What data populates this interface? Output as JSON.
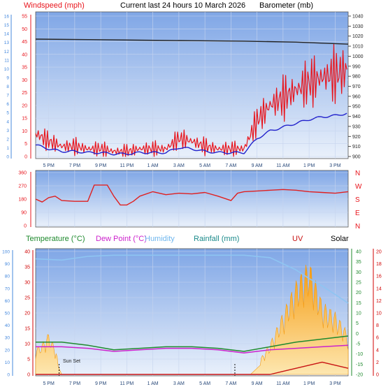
{
  "header": {
    "windspeed_label": "Windspeed (mph)",
    "title": "Current last 24 hours 10 March 2026",
    "barometer_label": "Barometer (mb)"
  },
  "legend": {
    "temperature": "Temperature (°C)",
    "dew_point": "Dew Point (°C)",
    "humidity": "Humidity",
    "rainfall": "Rainfall (mm)",
    "uv": "UV",
    "solar": "Solar"
  },
  "annotations": {
    "sun_set": "Sun Set"
  },
  "colors": {
    "panel_top": "#7fa6e6",
    "panel_bottom": "#eaf1fb",
    "windspeed": "#e8141c",
    "wind_avg": "#2222cc",
    "barometer": "#222222",
    "direction": "#e02020",
    "temperature": "#1f8a2e",
    "dew_point": "#cc22cc",
    "humidity": "#8ec5f2",
    "solar": "#f59b10",
    "uv": "#c81414",
    "left_axis_blue": "#4488dd",
    "right_axis_green": "#1f8a2e",
    "right_axis_red": "#d00000"
  },
  "chart_data": [
    {
      "type": "line",
      "name": "wind-barometer",
      "x_ticks": [
        "5 PM",
        "7 PM",
        "9 PM",
        "11 PM",
        "1 AM",
        "3 AM",
        "5 AM",
        "7 AM",
        "9 AM",
        "11 AM",
        "1 PM",
        "3 PM"
      ],
      "ylim_mph": [
        0,
        55
      ],
      "y_ticks_mph": [
        0,
        5,
        10,
        15,
        20,
        25,
        30,
        35,
        40,
        45,
        50,
        55
      ],
      "ylim_beaufort": [
        0,
        16
      ],
      "y_ticks_beaufort": [
        0,
        1,
        2,
        3,
        4,
        5,
        6,
        7,
        8,
        9,
        10,
        11,
        12,
        13,
        14,
        15,
        16
      ],
      "ylim_mb": [
        900,
        1040
      ],
      "y_ticks_mb": [
        900,
        910,
        920,
        930,
        940,
        950,
        960,
        970,
        980,
        990,
        1000,
        1010,
        1020,
        1030,
        1040
      ],
      "series": [
        {
          "name": "Windspeed (mph)",
          "x": [
            0,
            1,
            2,
            3,
            4,
            5,
            6,
            7,
            8,
            9,
            10,
            11,
            12,
            13,
            14,
            15,
            16,
            17,
            18,
            19,
            20,
            21,
            22,
            23,
            24
          ],
          "values": [
            9,
            6,
            4,
            4,
            3,
            3,
            2,
            2,
            3,
            3,
            3,
            7,
            6,
            4,
            3,
            3,
            3,
            14,
            20,
            23,
            26,
            29,
            31,
            32,
            34
          ]
        },
        {
          "name": "Barometer (mb)",
          "x": [
            0,
            4,
            8,
            12,
            16,
            20,
            24
          ],
          "values": [
            1017,
            1016.5,
            1016,
            1015.5,
            1015,
            1014,
            1012
          ]
        }
      ]
    },
    {
      "type": "line",
      "name": "wind-direction",
      "ylim": [
        0,
        360
      ],
      "y_ticks": [
        0,
        90,
        180,
        270,
        360
      ],
      "compass": [
        "N",
        "W",
        "S",
        "E",
        "N"
      ],
      "series": [
        {
          "name": "Wind Direction",
          "x": [
            0,
            0.5,
            1,
            1.5,
            2,
            3,
            4,
            4.5,
            5,
            5.5,
            6,
            6.5,
            7,
            7.5,
            8,
            9,
            10,
            11,
            12,
            13,
            14,
            15,
            15.5,
            16,
            17,
            18,
            19,
            20,
            21,
            22,
            23,
            24
          ],
          "values": [
            180,
            160,
            190,
            200,
            170,
            165,
            165,
            275,
            275,
            275,
            200,
            140,
            140,
            165,
            200,
            230,
            210,
            220,
            215,
            225,
            200,
            170,
            220,
            230,
            235,
            240,
            245,
            240,
            230,
            225,
            220,
            230
          ]
        }
      ]
    },
    {
      "type": "line",
      "name": "temperature-humidity-solar",
      "ylim_temp": [
        0,
        40
      ],
      "y_ticks_temp": [
        0,
        5,
        10,
        15,
        20,
        25,
        30,
        35,
        40
      ],
      "ylim_humidity": [
        0,
        100
      ],
      "y_ticks_humidity": [
        0,
        10,
        20,
        30,
        40,
        50,
        60,
        70,
        80,
        90,
        100
      ],
      "ylim_temp_right": [
        -20,
        40
      ],
      "y_ticks_temp_right": [
        -20,
        -15,
        -10,
        -5,
        0,
        5,
        10,
        15,
        20,
        25,
        30,
        35,
        40
      ],
      "ylim_uv": [
        0,
        20
      ],
      "y_ticks_uv": [
        0,
        2,
        4,
        6,
        8,
        10,
        12,
        14,
        16,
        18,
        20
      ],
      "series": [
        {
          "name": "Temperature (°C)",
          "x": [
            0,
            2,
            4,
            6,
            8,
            10,
            12,
            14,
            16,
            18,
            20,
            22,
            24
          ],
          "values": [
            10.5,
            10.5,
            9.5,
            8,
            8.5,
            9,
            9,
            8.5,
            7.5,
            9,
            10.5,
            11.5,
            12.5
          ]
        },
        {
          "name": "Dew Point (°C)",
          "x": [
            0,
            2,
            4,
            6,
            8,
            10,
            12,
            14,
            16,
            18,
            20,
            22,
            24
          ],
          "values": [
            9,
            9,
            8.5,
            7.5,
            8,
            8.5,
            8.5,
            8,
            7,
            8,
            8.5,
            9,
            9.5
          ]
        },
        {
          "name": "Humidity",
          "x": [
            0,
            2,
            4,
            6,
            8,
            10,
            12,
            14,
            16,
            18,
            19,
            20,
            21,
            22,
            23,
            24
          ],
          "values": [
            94,
            93,
            96,
            97,
            97,
            97,
            97,
            97,
            97,
            95,
            90,
            85,
            78,
            72,
            65,
            58
          ]
        },
        {
          "name": "Solar",
          "x": [
            0,
            0.5,
            1,
            1.5,
            1.8,
            2,
            16.5,
            17,
            18,
            19,
            20,
            21,
            22,
            23,
            24
          ],
          "values": [
            5,
            6,
            8,
            5,
            2,
            0,
            0,
            2,
            6,
            12,
            18,
            22,
            14,
            12,
            8
          ]
        },
        {
          "name": "UV",
          "x": [
            0,
            18,
            19,
            20,
            21,
            22,
            23,
            24
          ],
          "values": [
            0,
            0,
            0.5,
            1,
            1.5,
            2,
            1.5,
            1
          ]
        }
      ],
      "sunset_x": 1.8,
      "sunrise_x": 15.3
    }
  ]
}
